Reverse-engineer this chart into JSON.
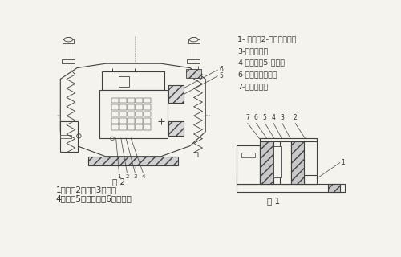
{
  "bg_color": "#f4f3ee",
  "line_color": "#404040",
  "text_color": "#303030",
  "right_labels": [
    "1- 机座；2-机电磁铁芯；",
    "3-共振弹簧；",
    "4-振动体；5-线圈；",
    "6-硬橡胶冲击块；",
    "7-调整螺栓；"
  ],
  "bottom_label1": "1、铁芯2、衔铁3、线圈",
  "bottom_label2": "4、机座5、共振弹簧6、振动体",
  "fig2_caption": "图 2",
  "fig1_caption": "图 1"
}
